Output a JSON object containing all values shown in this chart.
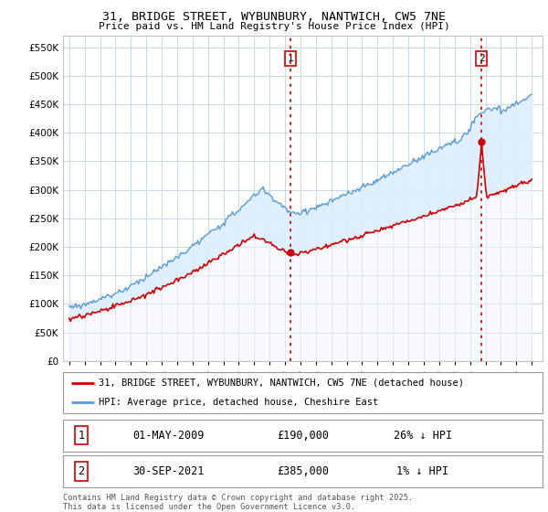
{
  "title_line1": "31, BRIDGE STREET, WYBUNBURY, NANTWICH, CW5 7NE",
  "title_line2": "Price paid vs. HM Land Registry's House Price Index (HPI)",
  "ylim": [
    0,
    570000
  ],
  "yticks": [
    0,
    50000,
    100000,
    150000,
    200000,
    250000,
    300000,
    350000,
    400000,
    450000,
    500000,
    550000
  ],
  "hpi_color": "#5b9bd5",
  "hpi_fill_color": "#ddeeff",
  "price_color": "#cc0000",
  "vline_color": "#cc0000",
  "background_plot": "#ffffff",
  "background_fig": "#ffffff",
  "grid_color": "#c8d8e8",
  "sale1_year": 2009.37,
  "sale1_price": 190000,
  "sale2_year": 2021.75,
  "sale2_price": 385000,
  "legend_label_red": "31, BRIDGE STREET, WYBUNBURY, NANTWICH, CW5 7NE (detached house)",
  "legend_label_blue": "HPI: Average price, detached house, Cheshire East",
  "ann1_text": "01-MAY-2009",
  "ann1_amount": "£190,000",
  "ann1_pct": "26% ↓ HPI",
  "ann2_text": "30-SEP-2021",
  "ann2_amount": "£385,000",
  "ann2_pct": "1% ↓ HPI",
  "footer": "Contains HM Land Registry data © Crown copyright and database right 2025.\nThis data is licensed under the Open Government Licence v3.0."
}
